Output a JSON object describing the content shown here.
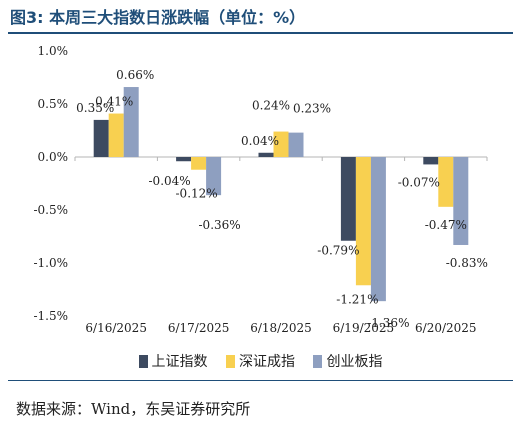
{
  "title": {
    "fig_label": "图3:",
    "text": "本周三大指数日涨跌幅（单位：%）"
  },
  "source": "数据来源：Wind，东吴证券研究所",
  "chart_data": {
    "type": "bar",
    "categories": [
      "6/16/2025",
      "6/17/2025",
      "6/18/2025",
      "6/19/2025",
      "6/20/2025"
    ],
    "series": [
      {
        "name": "上证指数",
        "color": "#3d4a60",
        "values": [
          0.35,
          -0.04,
          0.04,
          -0.79,
          -0.07
        ],
        "labels": [
          "0.35%",
          "-0.04%",
          "0.04%",
          "-0.79%",
          "-0.07%"
        ]
      },
      {
        "name": "深证成指",
        "color": "#f8d050",
        "values": [
          0.41,
          -0.12,
          0.24,
          -1.21,
          -0.47
        ],
        "labels": [
          "0.41%",
          "-0.12%",
          "0.24%",
          "-1.21%",
          "-0.47%"
        ]
      },
      {
        "name": "创业板指",
        "color": "#8e9fc0",
        "values": [
          0.66,
          -0.36,
          0.23,
          -1.36,
          -0.83
        ],
        "labels": [
          "0.66%",
          "-0.36%",
          "0.23%",
          "-1.36%",
          "-0.83%"
        ]
      }
    ],
    "yticks": [
      "1.0%",
      "0.5%",
      "0.0%",
      "-0.5%",
      "-1.0%",
      "-1.5%"
    ],
    "ytick_values": [
      1.0,
      0.5,
      0.0,
      -0.5,
      -1.0,
      -1.5
    ],
    "ylim": [
      -1.5,
      1.0
    ],
    "grid": false,
    "legend_position": "bottom"
  }
}
